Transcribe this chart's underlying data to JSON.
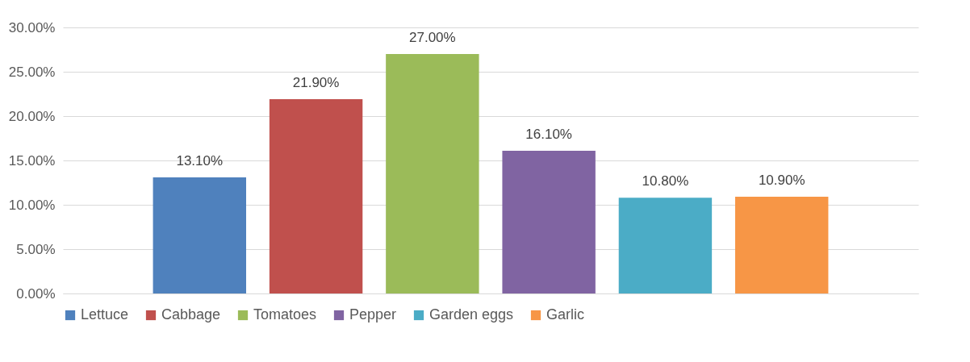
{
  "chart_data": {
    "type": "bar",
    "categories": [
      null
    ],
    "series": [
      {
        "name": "Lettuce",
        "color": "#4f81bd",
        "values": [
          13.1
        ],
        "value_labels": [
          "13.10%"
        ]
      },
      {
        "name": "Cabbage",
        "color": "#c0504d",
        "values": [
          21.9
        ],
        "value_labels": [
          "21.90%"
        ]
      },
      {
        "name": "Tomatoes",
        "color": "#9bbb59",
        "values": [
          27.0
        ],
        "value_labels": [
          "27.00%"
        ]
      },
      {
        "name": "Pepper",
        "color": "#8064a2",
        "values": [
          16.1
        ],
        "value_labels": [
          "16.10%"
        ]
      },
      {
        "name": "Garden eggs",
        "color": "#4bacc6",
        "values": [
          10.8
        ],
        "value_labels": [
          "10.80%"
        ]
      },
      {
        "name": "Garlic",
        "color": "#f79646",
        "values": [
          10.9
        ],
        "value_labels": [
          "10.90%"
        ]
      }
    ],
    "ylim": [
      0,
      30
    ],
    "yticks": [
      {
        "value": 0,
        "label": "0.00%"
      },
      {
        "value": 5,
        "label": "5.00%"
      },
      {
        "value": 10,
        "label": "10.00%"
      },
      {
        "value": 15,
        "label": "15.00%"
      },
      {
        "value": 20,
        "label": "20.00%"
      },
      {
        "value": 25,
        "label": "25.00%"
      },
      {
        "value": 30,
        "label": "30.00%"
      }
    ],
    "grid": "y",
    "legend": "bottom"
  }
}
